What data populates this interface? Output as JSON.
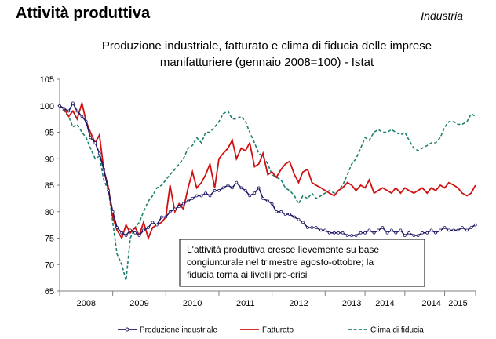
{
  "header": {
    "title": "Attività produttiva",
    "section": "Industria"
  },
  "chart_data": {
    "type": "line",
    "title_lines": [
      "Produzione industriale, fatturato e clima di fiducia delle imprese",
      "manifatturiere (gennaio 2008=100) - Istat"
    ],
    "ylim": [
      65,
      105
    ],
    "yticks": [
      65,
      70,
      75,
      80,
      85,
      90,
      95,
      100,
      105
    ],
    "xlim": [
      2008.0,
      2015.833
    ],
    "x_tick_labels": [
      {
        "x": 2008.5,
        "label": "2008"
      },
      {
        "x": 2009.5,
        "label": "2009"
      },
      {
        "x": 2010.5,
        "label": "2010"
      },
      {
        "x": 2011.5,
        "label": "2011"
      },
      {
        "x": 2012.5,
        "label": "2012"
      },
      {
        "x": 2013.5,
        "label": "2013"
      },
      {
        "x": 2014.125,
        "label": "2014"
      },
      {
        "x": 2015.0,
        "label": "2014"
      },
      {
        "x": 2015.5,
        "label": "2015"
      }
    ],
    "x_separators": [
      2009.0,
      2010.0,
      2011.0,
      2012.0,
      2013.0,
      2013.75,
      2014.5,
      2015.25
    ],
    "grid": false,
    "legend_position": "bottom",
    "annotation_lines": [
      "L'attività produttiva cresce lievemente su base",
      "congiunturale nel trimestre agosto-ottobre; la",
      "fiducia torna ai livelli pre-crisi"
    ],
    "series": [
      {
        "name": "Produzione industriale",
        "color": "#1f1a66",
        "style": "solid-marker",
        "points": [
          [
            2008.0,
            100
          ],
          [
            2008.08,
            99.5
          ],
          [
            2008.17,
            99
          ],
          [
            2008.25,
            100.5
          ],
          [
            2008.33,
            99
          ],
          [
            2008.42,
            98
          ],
          [
            2008.5,
            97
          ],
          [
            2008.58,
            94
          ],
          [
            2008.67,
            93
          ],
          [
            2008.75,
            91
          ],
          [
            2008.83,
            88
          ],
          [
            2008.92,
            84
          ],
          [
            2009.0,
            80
          ],
          [
            2009.08,
            77
          ],
          [
            2009.17,
            76
          ],
          [
            2009.25,
            75.5
          ],
          [
            2009.33,
            76.5
          ],
          [
            2009.42,
            76
          ],
          [
            2009.5,
            75.5
          ],
          [
            2009.58,
            76.5
          ],
          [
            2009.67,
            77
          ],
          [
            2009.75,
            78
          ],
          [
            2009.83,
            77.5
          ],
          [
            2009.92,
            79
          ],
          [
            2010.0,
            79
          ],
          [
            2010.08,
            80
          ],
          [
            2010.17,
            80.5
          ],
          [
            2010.25,
            81
          ],
          [
            2010.33,
            81.5
          ],
          [
            2010.42,
            82
          ],
          [
            2010.5,
            82.5
          ],
          [
            2010.58,
            83
          ],
          [
            2010.67,
            83
          ],
          [
            2010.75,
            83.5
          ],
          [
            2010.83,
            83
          ],
          [
            2010.92,
            84
          ],
          [
            2011.0,
            84
          ],
          [
            2011.08,
            84.5
          ],
          [
            2011.17,
            85
          ],
          [
            2011.25,
            84.5
          ],
          [
            2011.33,
            85.5
          ],
          [
            2011.42,
            84.5
          ],
          [
            2011.5,
            84
          ],
          [
            2011.58,
            83
          ],
          [
            2011.67,
            83.5
          ],
          [
            2011.75,
            84.5
          ],
          [
            2011.83,
            82.5
          ],
          [
            2011.92,
            82
          ],
          [
            2012.0,
            81.5
          ],
          [
            2012.08,
            80
          ],
          [
            2012.17,
            80
          ],
          [
            2012.25,
            79.5
          ],
          [
            2012.33,
            79.5
          ],
          [
            2012.42,
            79
          ],
          [
            2012.5,
            78.5
          ],
          [
            2012.58,
            78
          ],
          [
            2012.67,
            77
          ],
          [
            2012.75,
            77
          ],
          [
            2012.83,
            77
          ],
          [
            2012.92,
            76.5
          ],
          [
            2013.0,
            76.5
          ],
          [
            2013.08,
            76
          ],
          [
            2013.17,
            76
          ],
          [
            2013.25,
            76
          ],
          [
            2013.33,
            76
          ],
          [
            2013.42,
            75.5
          ],
          [
            2013.5,
            75.5
          ],
          [
            2013.58,
            75.5
          ],
          [
            2013.67,
            76
          ],
          [
            2013.75,
            76
          ],
          [
            2013.83,
            76.5
          ],
          [
            2013.92,
            76
          ],
          [
            2014.0,
            76.5
          ],
          [
            2014.08,
            77
          ],
          [
            2014.17,
            76
          ],
          [
            2014.25,
            76.5
          ],
          [
            2014.33,
            76
          ],
          [
            2014.42,
            76.5
          ],
          [
            2014.5,
            75.5
          ],
          [
            2014.58,
            76
          ],
          [
            2014.67,
            75.5
          ],
          [
            2014.75,
            75.5
          ],
          [
            2014.83,
            76
          ],
          [
            2014.92,
            76
          ],
          [
            2015.0,
            76.5
          ],
          [
            2015.08,
            76
          ],
          [
            2015.17,
            76.5
          ],
          [
            2015.25,
            77
          ],
          [
            2015.33,
            76.5
          ],
          [
            2015.42,
            76.5
          ],
          [
            2015.5,
            76.5
          ],
          [
            2015.58,
            77
          ],
          [
            2015.67,
            76.5
          ],
          [
            2015.75,
            77
          ],
          [
            2015.83,
            77.5
          ]
        ]
      },
      {
        "name": "Fatturato",
        "color": "#d01010",
        "style": "solid",
        "points": [
          [
            2008.0,
            100
          ],
          [
            2008.08,
            99.5
          ],
          [
            2008.17,
            98
          ],
          [
            2008.25,
            99
          ],
          [
            2008.33,
            97.5
          ],
          [
            2008.42,
            100.5
          ],
          [
            2008.5,
            97
          ],
          [
            2008.58,
            95
          ],
          [
            2008.67,
            93
          ],
          [
            2008.75,
            94.5
          ],
          [
            2008.83,
            88
          ],
          [
            2008.92,
            84.5
          ],
          [
            2009.0,
            79
          ],
          [
            2009.08,
            76.5
          ],
          [
            2009.17,
            75
          ],
          [
            2009.25,
            77.5
          ],
          [
            2009.33,
            76
          ],
          [
            2009.42,
            77
          ],
          [
            2009.5,
            75.5
          ],
          [
            2009.58,
            78
          ],
          [
            2009.67,
            75
          ],
          [
            2009.75,
            77
          ],
          [
            2009.83,
            77.5
          ],
          [
            2009.92,
            78
          ],
          [
            2010.0,
            79
          ],
          [
            2010.08,
            85
          ],
          [
            2010.17,
            80
          ],
          [
            2010.25,
            81.5
          ],
          [
            2010.33,
            80.5
          ],
          [
            2010.42,
            84.5
          ],
          [
            2010.5,
            87.5
          ],
          [
            2010.58,
            84.5
          ],
          [
            2010.67,
            85.5
          ],
          [
            2010.75,
            87
          ],
          [
            2010.83,
            89
          ],
          [
            2010.92,
            84.5
          ],
          [
            2011.0,
            90
          ],
          [
            2011.08,
            91
          ],
          [
            2011.17,
            92
          ],
          [
            2011.25,
            93.5
          ],
          [
            2011.33,
            90
          ],
          [
            2011.42,
            92
          ],
          [
            2011.5,
            91.5
          ],
          [
            2011.58,
            93
          ],
          [
            2011.67,
            88.5
          ],
          [
            2011.75,
            89
          ],
          [
            2011.83,
            91
          ],
          [
            2011.92,
            87
          ],
          [
            2012.0,
            87.5
          ],
          [
            2012.08,
            86.5
          ],
          [
            2012.17,
            88
          ],
          [
            2012.25,
            89
          ],
          [
            2012.33,
            89.5
          ],
          [
            2012.42,
            87
          ],
          [
            2012.5,
            85.5
          ],
          [
            2012.58,
            87.5
          ],
          [
            2012.67,
            88
          ],
          [
            2012.75,
            85.5
          ],
          [
            2012.83,
            85
          ],
          [
            2012.92,
            84.5
          ],
          [
            2013.0,
            84
          ],
          [
            2013.08,
            83.5
          ],
          [
            2013.17,
            83
          ],
          [
            2013.25,
            84
          ],
          [
            2013.33,
            84.5
          ],
          [
            2013.42,
            85.5
          ],
          [
            2013.5,
            85
          ],
          [
            2013.58,
            84
          ],
          [
            2013.67,
            85
          ],
          [
            2013.75,
            84.5
          ],
          [
            2013.83,
            86
          ],
          [
            2013.92,
            83.5
          ],
          [
            2014.0,
            84
          ],
          [
            2014.08,
            84.5
          ],
          [
            2014.17,
            84
          ],
          [
            2014.25,
            83.5
          ],
          [
            2014.33,
            84.5
          ],
          [
            2014.42,
            83.5
          ],
          [
            2014.5,
            84.5
          ],
          [
            2014.58,
            84
          ],
          [
            2014.67,
            83.5
          ],
          [
            2014.75,
            84
          ],
          [
            2014.83,
            84.5
          ],
          [
            2014.92,
            83.5
          ],
          [
            2015.0,
            84.5
          ],
          [
            2015.08,
            84
          ],
          [
            2015.17,
            85
          ],
          [
            2015.25,
            84.5
          ],
          [
            2015.33,
            85.5
          ],
          [
            2015.42,
            85
          ],
          [
            2015.5,
            84.5
          ],
          [
            2015.58,
            83.5
          ],
          [
            2015.67,
            83
          ],
          [
            2015.75,
            83.5
          ],
          [
            2015.83,
            85
          ]
        ]
      },
      {
        "name": "Clima di fiducia",
        "color": "#1e8070",
        "style": "dashed",
        "points": [
          [
            2008.0,
            100
          ],
          [
            2008.08,
            99
          ],
          [
            2008.17,
            98
          ],
          [
            2008.25,
            96
          ],
          [
            2008.33,
            96.5
          ],
          [
            2008.42,
            95
          ],
          [
            2008.5,
            94
          ],
          [
            2008.58,
            92
          ],
          [
            2008.67,
            90
          ],
          [
            2008.75,
            90.5
          ],
          [
            2008.83,
            86
          ],
          [
            2008.92,
            84
          ],
          [
            2009.0,
            78
          ],
          [
            2009.08,
            72
          ],
          [
            2009.17,
            70
          ],
          [
            2009.25,
            67
          ],
          [
            2009.33,
            75
          ],
          [
            2009.42,
            77
          ],
          [
            2009.5,
            78
          ],
          [
            2009.58,
            80
          ],
          [
            2009.67,
            82
          ],
          [
            2009.75,
            83
          ],
          [
            2009.83,
            84.5
          ],
          [
            2009.92,
            85
          ],
          [
            2010.0,
            86
          ],
          [
            2010.08,
            87
          ],
          [
            2010.17,
            88
          ],
          [
            2010.25,
            89
          ],
          [
            2010.33,
            90
          ],
          [
            2010.42,
            92
          ],
          [
            2010.5,
            92.5
          ],
          [
            2010.58,
            94
          ],
          [
            2010.67,
            93
          ],
          [
            2010.75,
            95
          ],
          [
            2010.83,
            95
          ],
          [
            2010.92,
            96
          ],
          [
            2011.0,
            97
          ],
          [
            2011.08,
            98.5
          ],
          [
            2011.17,
            99
          ],
          [
            2011.25,
            97.5
          ],
          [
            2011.33,
            97.5
          ],
          [
            2011.42,
            98
          ],
          [
            2011.5,
            97
          ],
          [
            2011.58,
            95
          ],
          [
            2011.67,
            93
          ],
          [
            2011.75,
            91
          ],
          [
            2011.83,
            90.5
          ],
          [
            2011.92,
            89
          ],
          [
            2012.0,
            87
          ],
          [
            2012.08,
            86.5
          ],
          [
            2012.17,
            86
          ],
          [
            2012.25,
            84.5
          ],
          [
            2012.33,
            84
          ],
          [
            2012.42,
            83
          ],
          [
            2012.5,
            81.5
          ],
          [
            2012.58,
            83
          ],
          [
            2012.67,
            82.5
          ],
          [
            2012.75,
            83.5
          ],
          [
            2012.83,
            82.5
          ],
          [
            2012.92,
            83
          ],
          [
            2013.0,
            83.5
          ],
          [
            2013.08,
            84
          ],
          [
            2013.17,
            83.5
          ],
          [
            2013.25,
            84
          ],
          [
            2013.33,
            85
          ],
          [
            2013.42,
            87
          ],
          [
            2013.5,
            89
          ],
          [
            2013.58,
            90
          ],
          [
            2013.67,
            92
          ],
          [
            2013.75,
            94
          ],
          [
            2013.83,
            93.5
          ],
          [
            2013.92,
            95
          ],
          [
            2014.0,
            95.5
          ],
          [
            2014.08,
            95
          ],
          [
            2014.17,
            95
          ],
          [
            2014.25,
            95.5
          ],
          [
            2014.33,
            95
          ],
          [
            2014.42,
            94.5
          ],
          [
            2014.5,
            95
          ],
          [
            2014.58,
            93.5
          ],
          [
            2014.67,
            92
          ],
          [
            2014.75,
            91.5
          ],
          [
            2014.83,
            92
          ],
          [
            2014.92,
            92.5
          ],
          [
            2015.0,
            93
          ],
          [
            2015.08,
            93
          ],
          [
            2015.17,
            94
          ],
          [
            2015.25,
            96
          ],
          [
            2015.33,
            97
          ],
          [
            2015.42,
            97
          ],
          [
            2015.5,
            96.5
          ],
          [
            2015.58,
            96.5
          ],
          [
            2015.67,
            97
          ],
          [
            2015.75,
            98.5
          ],
          [
            2015.83,
            98
          ]
        ]
      }
    ]
  }
}
